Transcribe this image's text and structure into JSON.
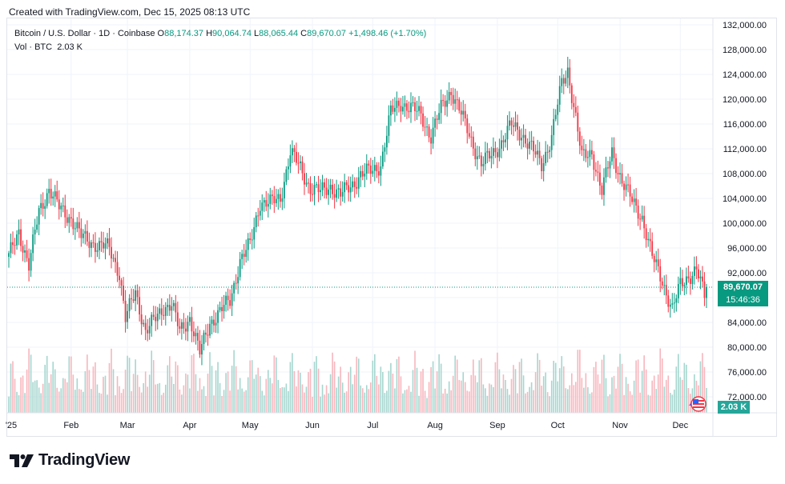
{
  "header": {
    "created_text": "Created with TradingView.com, Dec 15, 2025 08:13 UTC"
  },
  "legend": {
    "symbol": "Bitcoin / U.S. Dollar · 1D · Coinbase",
    "o_label": "O",
    "o_value": "88,174.37",
    "h_label": "H",
    "h_value": "90,064.74",
    "l_label": "L",
    "l_value": "88,065.44",
    "c_label": "C",
    "c_value": "89,670.07",
    "change": "+1,498.46 (+1.70%)",
    "vol_label": "Vol · BTC",
    "vol_value": "2.03 K"
  },
  "price_badge": {
    "price": "89,670.07",
    "countdown": "15:46:36"
  },
  "volume_badge": "2.03 K",
  "footer": {
    "brand": "TradingView"
  },
  "colors": {
    "up": "#089981",
    "down": "#f23645",
    "up_vol": "#a5d6cf",
    "down_vol": "#f7b6bd",
    "grid": "#f0f3fa"
  },
  "chart_data": {
    "type": "candlestick",
    "title": "Bitcoin / U.S. Dollar · 1D · Coinbase",
    "y_ticks": [
      "132,000.00",
      "128,000.00",
      "124,000.00",
      "120,000.00",
      "116,000.00",
      "112,000.00",
      "108,000.00",
      "104,000.00",
      "100,000.00",
      "96,000.00",
      "92,000.00",
      "88,000.00",
      "84,000.00",
      "80,000.00",
      "76,000.00",
      "72,000.00"
    ],
    "y_tick_values": [
      132000,
      128000,
      124000,
      120000,
      116000,
      112000,
      108000,
      104000,
      100000,
      96000,
      92000,
      88000,
      84000,
      80000,
      76000,
      72000
    ],
    "ylim": [
      70500,
      133000
    ],
    "x_ticks": [
      "'25",
      "Feb",
      "Mar",
      "Apr",
      "May",
      "Jun",
      "Jul",
      "Aug",
      "Sep",
      "Oct",
      "Nov",
      "Dec"
    ],
    "x_tick_days": [
      -1,
      31,
      59,
      90,
      120,
      151,
      181,
      212,
      243,
      273,
      304,
      334
    ],
    "last_price": 89670.07,
    "close_anchors": [
      [
        0,
        94500
      ],
      [
        5,
        98800
      ],
      [
        10,
        93000
      ],
      [
        15,
        102000
      ],
      [
        20,
        105500
      ],
      [
        25,
        102500
      ],
      [
        31,
        100800
      ],
      [
        36,
        97800
      ],
      [
        41,
        97000
      ],
      [
        45,
        96300
      ],
      [
        50,
        96000
      ],
      [
        55,
        92000
      ],
      [
        58,
        84500
      ],
      [
        63,
        89000
      ],
      [
        68,
        82500
      ],
      [
        72,
        84100
      ],
      [
        77,
        86500
      ],
      [
        81,
        86900
      ],
      [
        85,
        82500
      ],
      [
        90,
        84800
      ],
      [
        95,
        79000
      ],
      [
        100,
        84000
      ],
      [
        105,
        85700
      ],
      [
        110,
        87500
      ],
      [
        115,
        94000
      ],
      [
        120,
        96500
      ],
      [
        125,
        103500
      ],
      [
        130,
        103200
      ],
      [
        135,
        104000
      ],
      [
        140,
        111500
      ],
      [
        145,
        108800
      ],
      [
        150,
        105700
      ],
      [
        155,
        105000
      ],
      [
        160,
        106000
      ],
      [
        165,
        104500
      ],
      [
        170,
        106000
      ],
      [
        175,
        107800
      ],
      [
        181,
        108500
      ],
      [
        185,
        109500
      ],
      [
        190,
        117800
      ],
      [
        195,
        119500
      ],
      [
        200,
        118500
      ],
      [
        205,
        117500
      ],
      [
        210,
        114000
      ],
      [
        215,
        118500
      ],
      [
        220,
        121500
      ],
      [
        225,
        117500
      ],
      [
        230,
        113500
      ],
      [
        235,
        109500
      ],
      [
        240,
        111000
      ],
      [
        245,
        113000
      ],
      [
        250,
        115800
      ],
      [
        255,
        114500
      ],
      [
        260,
        112000
      ],
      [
        265,
        109500
      ],
      [
        270,
        114000
      ],
      [
        275,
        122500
      ],
      [
        278,
        124800
      ],
      [
        282,
        117000
      ],
      [
        285,
        110500
      ],
      [
        290,
        111500
      ],
      [
        295,
        105000
      ],
      [
        300,
        111500
      ],
      [
        305,
        106800
      ],
      [
        310,
        103500
      ],
      [
        315,
        101000
      ],
      [
        320,
        94500
      ],
      [
        325,
        90800
      ],
      [
        330,
        86000
      ],
      [
        334,
        90000
      ],
      [
        338,
        91500
      ],
      [
        342,
        92500
      ],
      [
        346,
        88100
      ],
      [
        347,
        89670
      ]
    ]
  }
}
